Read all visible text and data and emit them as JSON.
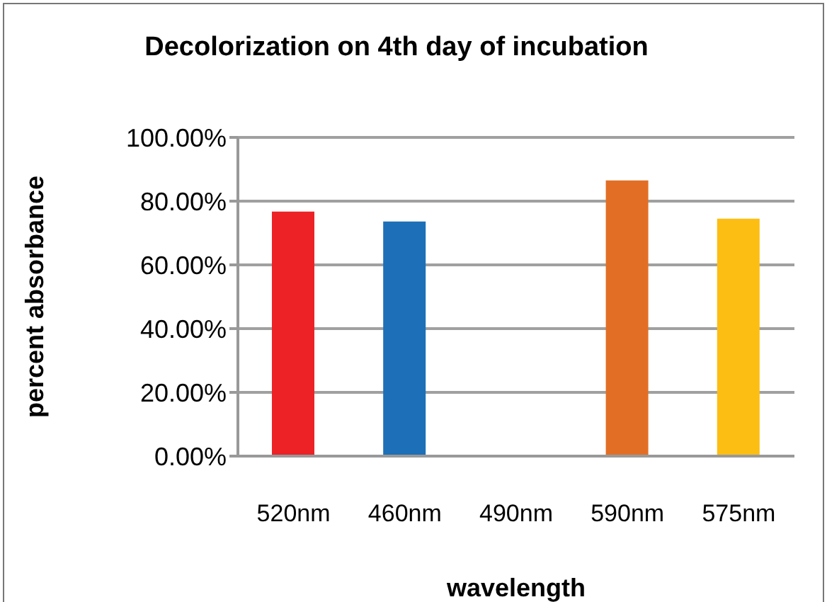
{
  "chart_data": {
    "type": "bar",
    "title": "Decolorization on 4th day of incubation",
    "xlabel": "wavelength",
    "ylabel": "percent  absorbance",
    "categories": [
      "520nm",
      "460nm",
      "490nm",
      "590nm",
      "575nm"
    ],
    "values": [
      76.7,
      73.6,
      null,
      86.5,
      74.5
    ],
    "colors": [
      "#ec2227",
      "#1d6fb8",
      null,
      "#e26e25",
      "#fcbe13"
    ],
    "ylim": [
      0,
      100
    ],
    "yticks": [
      {
        "value": 0,
        "label": "0.00%"
      },
      {
        "value": 20,
        "label": "20.00%"
      },
      {
        "value": 40,
        "label": "40.00%"
      },
      {
        "value": 60,
        "label": "60.00%"
      },
      {
        "value": 80,
        "label": "80.00%"
      },
      {
        "value": 100,
        "label": "100.00%"
      }
    ],
    "grid": "y",
    "legend": false
  }
}
